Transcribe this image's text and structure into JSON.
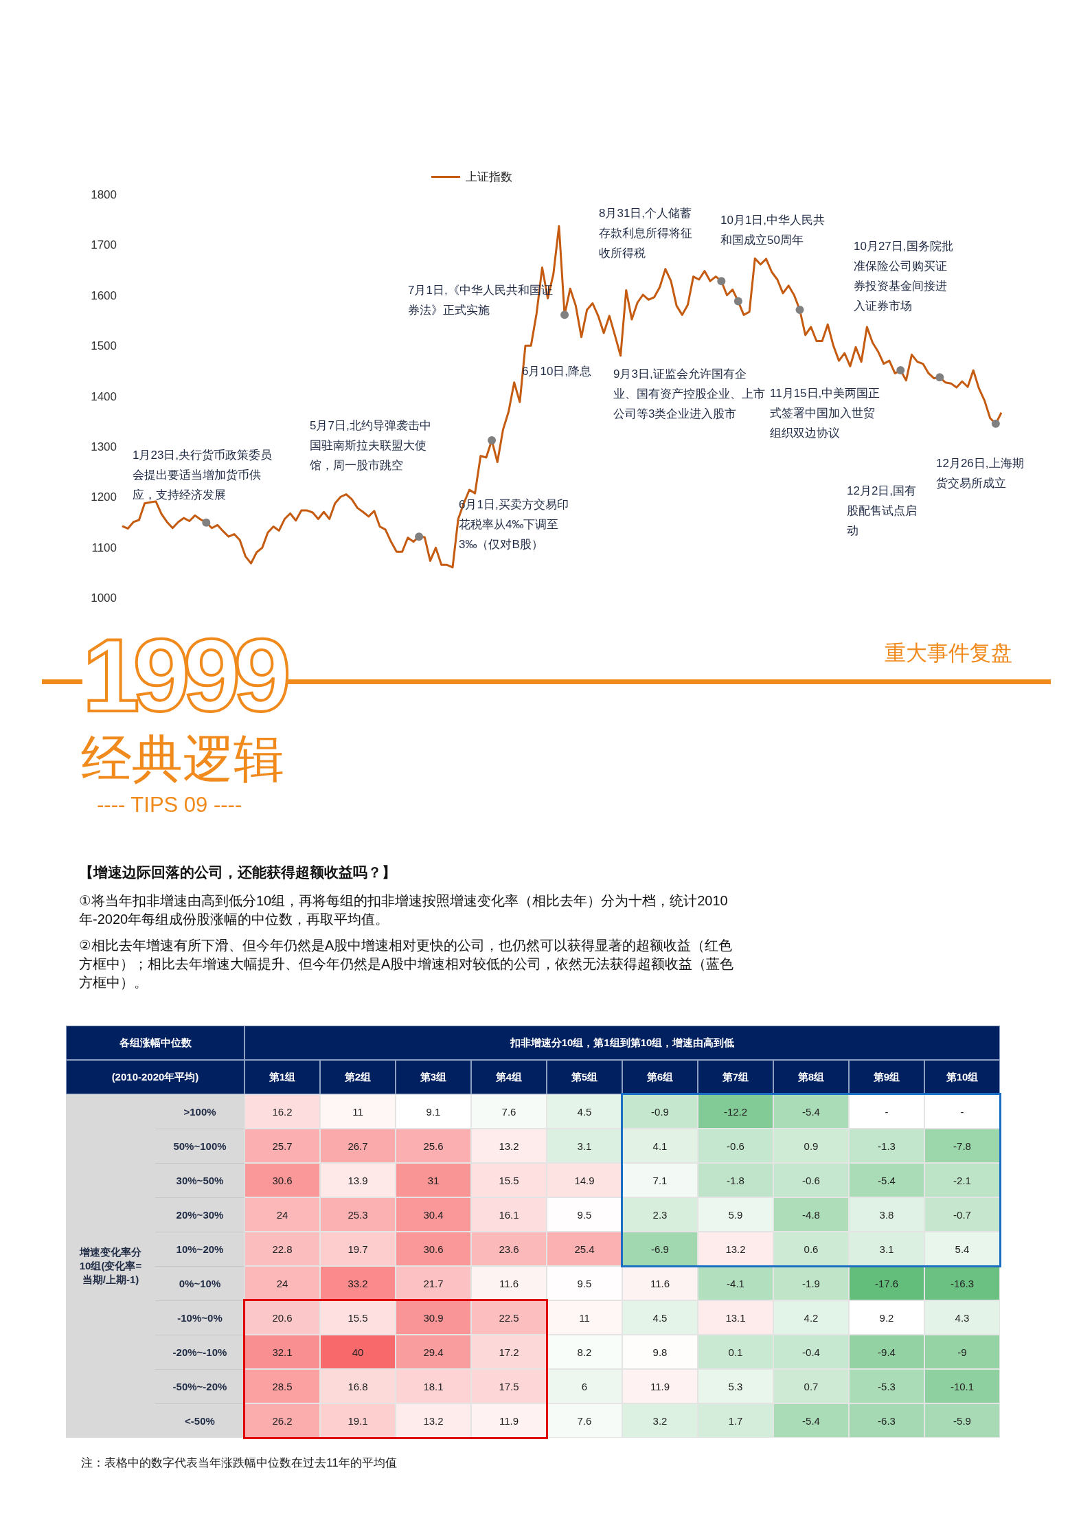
{
  "chart_data": [
    {
      "type": "line",
      "title": "重大事件复盘",
      "categories": [
        null,
        null,
        null,
        null,
        null,
        null,
        null,
        null,
        null,
        null,
        null,
        null,
        null,
        null,
        null,
        null,
        null,
        null,
        null,
        null,
        null,
        null,
        null,
        null,
        null,
        null,
        null,
        null,
        null,
        null,
        null,
        null,
        null,
        null,
        null,
        null,
        null,
        null,
        null,
        null,
        null,
        null,
        null,
        null,
        null,
        null,
        null,
        null,
        null,
        null,
        null,
        null,
        null,
        null,
        null,
        null,
        null,
        null,
        null,
        null,
        null,
        null,
        null,
        null,
        null,
        null,
        null,
        null,
        null,
        null,
        null,
        null,
        null,
        null,
        null,
        null,
        null,
        null,
        null,
        null,
        null,
        null,
        null,
        null,
        null,
        null,
        null,
        null,
        null,
        null,
        null,
        null,
        null,
        null,
        null,
        null,
        null,
        null,
        null,
        null,
        null,
        null,
        null,
        null,
        null,
        null,
        null,
        null,
        null,
        null,
        null,
        null,
        null,
        null,
        null,
        null,
        null,
        null,
        null,
        null,
        null,
        null,
        null,
        null,
        null,
        null,
        null,
        null,
        null,
        null,
        null,
        null,
        null,
        null,
        null,
        null,
        null,
        null,
        null,
        null,
        null,
        null,
        null,
        null,
        null,
        null,
        null,
        null,
        null,
        null,
        null,
        null,
        null,
        null,
        null,
        null,
        null,
        null
      ],
      "series": [
        {
          "name": "上证指数",
          "color": "#c55a11",
          "values": [
            1142,
            1137,
            1150,
            1154,
            1187,
            1189,
            1191,
            1166,
            1150,
            1138,
            1150,
            1158,
            1152,
            1163,
            1155,
            1149,
            1138,
            1144,
            1132,
            1121,
            1126,
            1114,
            1082,
            1068,
            1090,
            1099,
            1129,
            1141,
            1133,
            1156,
            1167,
            1153,
            1173,
            1173,
            1169,
            1156,
            1170,
            1156,
            1187,
            1200,
            1205,
            1195,
            1178,
            1170,
            1161,
            1172,
            1141,
            1135,
            1111,
            1091,
            1091,
            1119,
            1111,
            1121,
            1120,
            1073,
            1099,
            1065,
            1065,
            1060,
            1156,
            1187,
            1214,
            1207,
            1281,
            1278,
            1312,
            1269,
            1333,
            1369,
            1427,
            1388,
            1500,
            1500,
            1564,
            1655,
            1594,
            1642,
            1737,
            1561,
            1613,
            1579,
            1517,
            1571,
            1584,
            1559,
            1525,
            1559,
            1520,
            1480,
            1610,
            1552,
            1585,
            1601,
            1591,
            1596,
            1616,
            1652,
            1628,
            1579,
            1561,
            1581,
            1637,
            1631,
            1648,
            1628,
            1637,
            1628,
            1600,
            1611,
            1588,
            1561,
            1567,
            1673,
            1661,
            1672,
            1646,
            1631,
            1604,
            1619,
            1600,
            1571,
            1521,
            1537,
            1509,
            1509,
            1542,
            1500,
            1470,
            1485,
            1459,
            1497,
            1468,
            1537,
            1506,
            1488,
            1464,
            1470,
            1445,
            1451,
            1431,
            1482,
            1468,
            1464,
            1445,
            1435,
            1437,
            1427,
            1425,
            1417,
            1429,
            1418,
            1451,
            1415,
            1391,
            1356,
            1345,
            1367
          ]
        },
        {
          "type": "scatter",
          "color": "#808080",
          "values": [
            null,
            null,
            null,
            null,
            null,
            null,
            null,
            null,
            null,
            null,
            null,
            null,
            null,
            null,
            null,
            1149,
            null,
            null,
            null,
            null,
            null,
            null,
            null,
            null,
            null,
            null,
            null,
            null,
            null,
            null,
            null,
            null,
            null,
            null,
            null,
            null,
            null,
            null,
            null,
            null,
            null,
            null,
            null,
            null,
            null,
            null,
            null,
            null,
            null,
            null,
            null,
            null,
            null,
            1121,
            null,
            null,
            null,
            null,
            null,
            null,
            null,
            null,
            null,
            null,
            null,
            null,
            1312,
            null,
            null,
            null,
            null,
            null,
            null,
            null,
            null,
            null,
            null,
            null,
            null,
            1561,
            null,
            null,
            null,
            null,
            null,
            null,
            null,
            null,
            null,
            null,
            null,
            null,
            null,
            null,
            null,
            null,
            null,
            null,
            null,
            null,
            null,
            null,
            null,
            null,
            null,
            null,
            null,
            1628,
            null,
            null,
            1588,
            null,
            null,
            null,
            null,
            null,
            null,
            null,
            null,
            null,
            null,
            1571,
            null,
            null,
            null,
            null,
            null,
            null,
            null,
            null,
            null,
            null,
            null,
            null,
            null,
            null,
            null,
            null,
            null,
            1451,
            null,
            null,
            null,
            null,
            null,
            null,
            1437,
            null,
            null,
            null,
            null,
            null,
            null,
            null,
            null,
            null,
            1345,
            null
          ]
        }
      ],
      "ylim": [
        1000,
        1800
      ],
      "yticks": [
        1000,
        1100,
        1200,
        1300,
        1400,
        1500,
        1600,
        1700,
        1800
      ],
      "tick_labels": "y",
      "legend": "top",
      "annotations": [
        "1月23日,央行货币政策委员会提出要适当增加货币供应，支持经济发展",
        "5月7日,北约导弹袭击中国驻南斯拉夫联盟大使馆，周一股市跳空",
        "7月1日,《中华人民共和国证券法》正式实施",
        "6月1日,买卖方交易印花税率从4‰下调至3‰（仅对B股）",
        "6月10日,降息",
        "8月31日,个人储蓄存款利息所得将征收所得税",
        "9月3日,证监会允许国有企业、国有资产控股企业、上市公司等3类企业进入股市",
        "10月1日,中华人民共和国成立50周年",
        "10月27日,国务院批准保险公司购买证券投资基金间接进入证券市场",
        "11月15日,中美两国正式签署中国加入世贸组织双边协议",
        "12月2日,国有股配售试点启动",
        "12月26日,上海期货交易所成立"
      ]
    },
    {
      "type": "heatmap",
      "title": "【增速边际回落的公司，还能获得超额收益吗？】",
      "xlabel": "扣非增速分10组，第1组到第10组，增速由高到低",
      "ylabel": "增速变化率分10组(变化率=当期/上期-1)",
      "categories": [
        "第1组",
        "第2组",
        "第3组",
        "第4组",
        "第5组",
        "第6组",
        "第7组",
        "第8组",
        "第9组",
        "第10组"
      ],
      "y_categories": [
        ">100%",
        "50%~100%",
        "30%~50%",
        "20%~30%",
        "10%~20%",
        "0%~10%",
        "-10%~0%",
        "-20%~-10%",
        "-50%~-20%",
        "<-50%"
      ],
      "cells": [
        [
          16.2,
          11,
          9.1,
          7.6,
          4.5,
          -0.9,
          -12.2,
          -5.4,
          null,
          null
        ],
        [
          25.7,
          26.7,
          25.6,
          13.2,
          3.1,
          4.1,
          -0.6,
          0.9,
          -1.3,
          -7.8
        ],
        [
          30.6,
          13.9,
          31,
          15.5,
          14.9,
          7.1,
          -1.8,
          -0.6,
          -5.4,
          -2.1
        ],
        [
          24,
          25.3,
          30.4,
          16.1,
          9.5,
          2.3,
          5.9,
          -4.8,
          3.8,
          -0.7
        ],
        [
          22.8,
          19.7,
          30.6,
          23.6,
          25.4,
          -6.9,
          13.2,
          0.6,
          3.1,
          5.4
        ],
        [
          24,
          33.2,
          21.7,
          11.6,
          9.5,
          11.6,
          -4.1,
          -1.9,
          -17.6,
          -16.3
        ],
        [
          20.6,
          15.5,
          30.9,
          22.5,
          11,
          4.5,
          13.1,
          4.2,
          9.2,
          4.3
        ],
        [
          32.1,
          40,
          29.4,
          17.2,
          8.2,
          9.8,
          0.1,
          -0.4,
          -9.4,
          -9
        ],
        [
          28.5,
          16.8,
          18.1,
          17.5,
          6,
          11.9,
          5.3,
          0.7,
          -5.3,
          -10.1
        ],
        [
          26.2,
          19.1,
          13.2,
          11.9,
          7.6,
          3.2,
          1.7,
          -5.4,
          -6.3,
          -5.9
        ]
      ],
      "cell_labels": [
        [
          "16.2",
          "11",
          "9.1",
          "7.6",
          "4.5",
          "-0.9",
          "-12.2",
          "-5.4",
          "-",
          "-"
        ],
        [
          "25.7",
          "26.7",
          "25.6",
          "13.2",
          "3.1",
          "4.1",
          "-0.6",
          "0.9",
          "-1.3",
          "-7.8"
        ],
        [
          "30.6",
          "13.9",
          "31",
          "15.5",
          "14.9",
          "7.1",
          "-1.8",
          "-0.6",
          "-5.4",
          "-2.1"
        ],
        [
          "24",
          "25.3",
          "30.4",
          "16.1",
          "9.5",
          "2.3",
          "5.9",
          "-4.8",
          "3.8",
          "-0.7"
        ],
        [
          "22.8",
          "19.7",
          "30.6",
          "23.6",
          "25.4",
          "-6.9",
          "13.2",
          "0.6",
          "3.1",
          "5.4"
        ],
        [
          "24",
          "33.2",
          "21.7",
          "11.6",
          "9.5",
          "11.6",
          "-4.1",
          "-1.9",
          "-17.6",
          "-16.3"
        ],
        [
          "20.6",
          "15.5",
          "30.9",
          "22.5",
          "11",
          "4.5",
          "13.1",
          "4.2",
          "9.2",
          "4.3"
        ],
        [
          "32.1",
          "40",
          "29.4",
          "17.2",
          "8.2",
          "9.8",
          "0.1",
          "-0.4",
          "-9.4",
          "-9"
        ],
        [
          "28.5",
          "16.8",
          "18.1",
          "17.5",
          "6",
          "11.9",
          "5.3",
          "0.7",
          "-5.3",
          "-10.1"
        ],
        [
          "26.2",
          "19.1",
          "13.2",
          "11.9",
          "7.6",
          "3.2",
          "1.7",
          "-5.4",
          "-6.3",
          "-5.9"
        ]
      ],
      "data_labels": true,
      "annotations": [
        "1999",
        "经典逻辑",
        "---- TIPS 09 ----",
        "①将当年扣非增速由高到低分10组，再将每组的扣非增速按照增速变化率（相比去年）分为十档，统计2010年-2020年每组成份股涨幅的中位数，再取平均值。",
        "②相比去年增速有所下滑、但今年仍然是A股中增速相对更快的公司，也仍然可以获得显著的超额收益（红色方框中）；相比去年增速大幅提升、但今年仍然是A股中增速相对较低的公司，依然无法获得超额收益（蓝色方框中）。",
        "各组涨幅中位数",
        "(2010-2020年平均)",
        "注：表格中的数字代表当年涨跌幅中位数在过去11年的平均值"
      ]
    }
  ]
}
